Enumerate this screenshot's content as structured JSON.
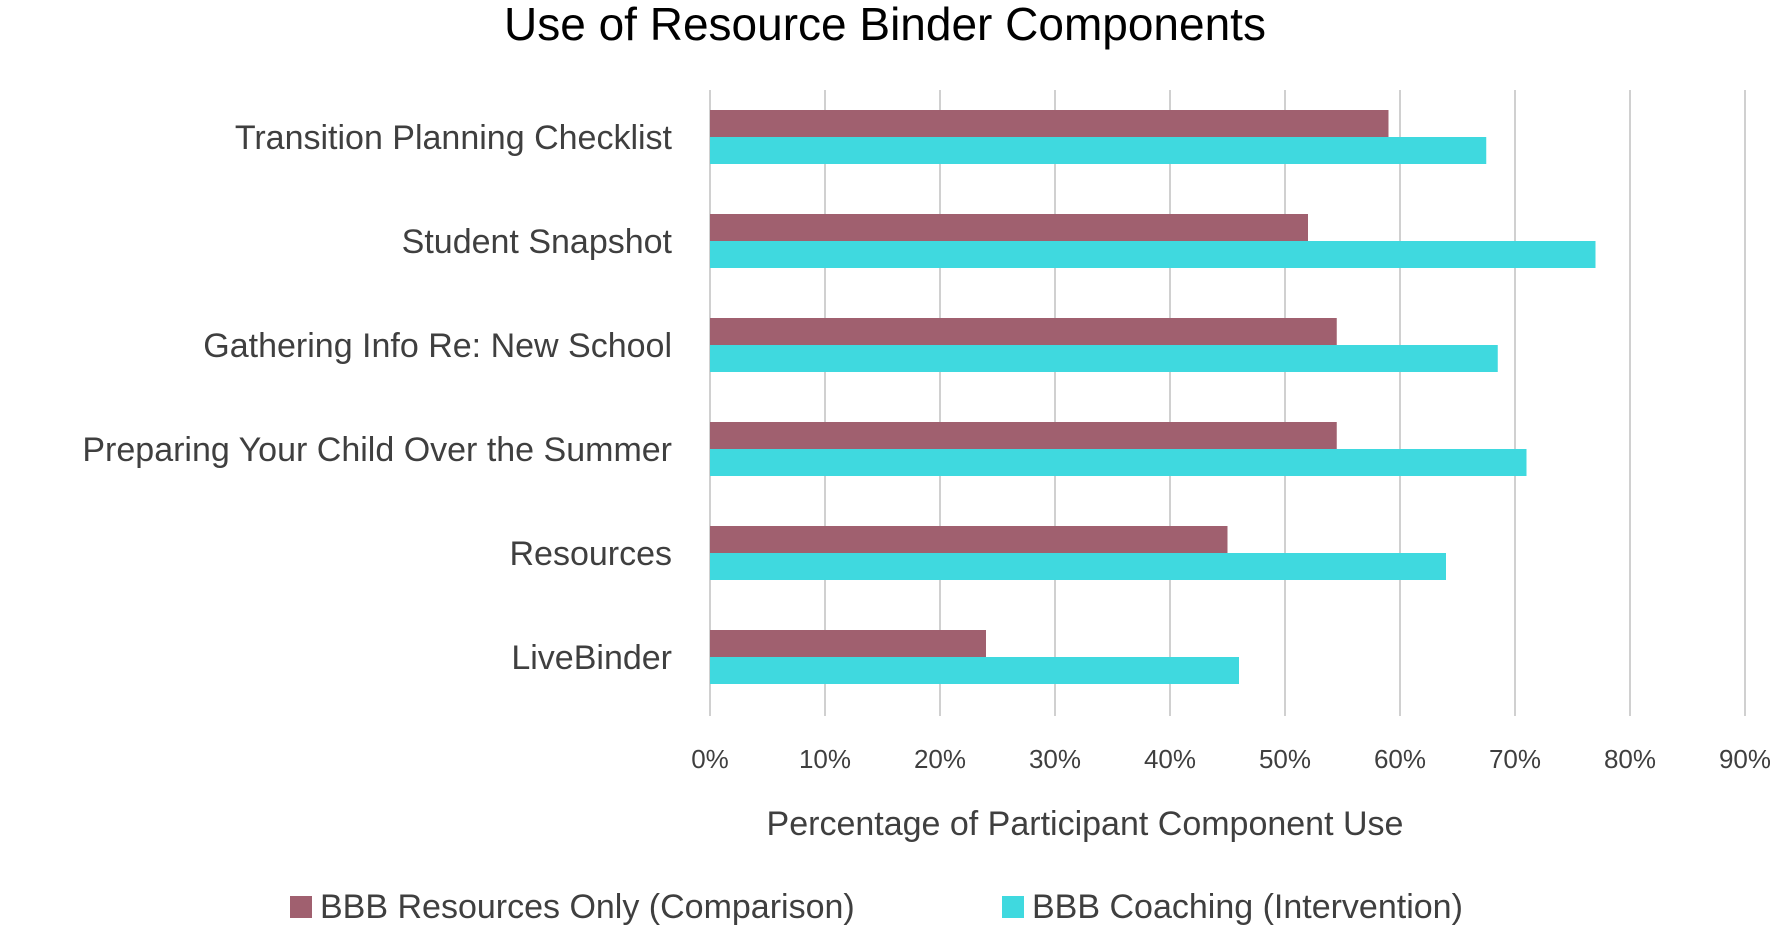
{
  "chart_data": {
    "type": "bar",
    "orientation": "horizontal",
    "title": "Use of Resource Binder Components",
    "xlabel": "Percentage of Participant Component Use",
    "ylabel": "",
    "xlim": [
      0,
      90
    ],
    "x_ticks": [
      "0%",
      "10%",
      "20%",
      "30%",
      "40%",
      "50%",
      "60%",
      "70%",
      "80%",
      "90%"
    ],
    "categories": [
      "Transition Planning Checklist",
      "Student Snapshot",
      "Gathering Info Re: New School",
      "Preparing Your Child Over the Summer",
      "Resources",
      "LiveBinder"
    ],
    "series": [
      {
        "name": "BBB Resources Only (Comparison)",
        "color": "#a0606f",
        "values": [
          59,
          52,
          54.5,
          54.5,
          45,
          24
        ]
      },
      {
        "name": "BBB Coaching (Intervention)",
        "color": "#3fd9df",
        "values": [
          67.5,
          77,
          68.5,
          71,
          64,
          46
        ]
      }
    ],
    "grid": true,
    "legend_position": "bottom"
  }
}
